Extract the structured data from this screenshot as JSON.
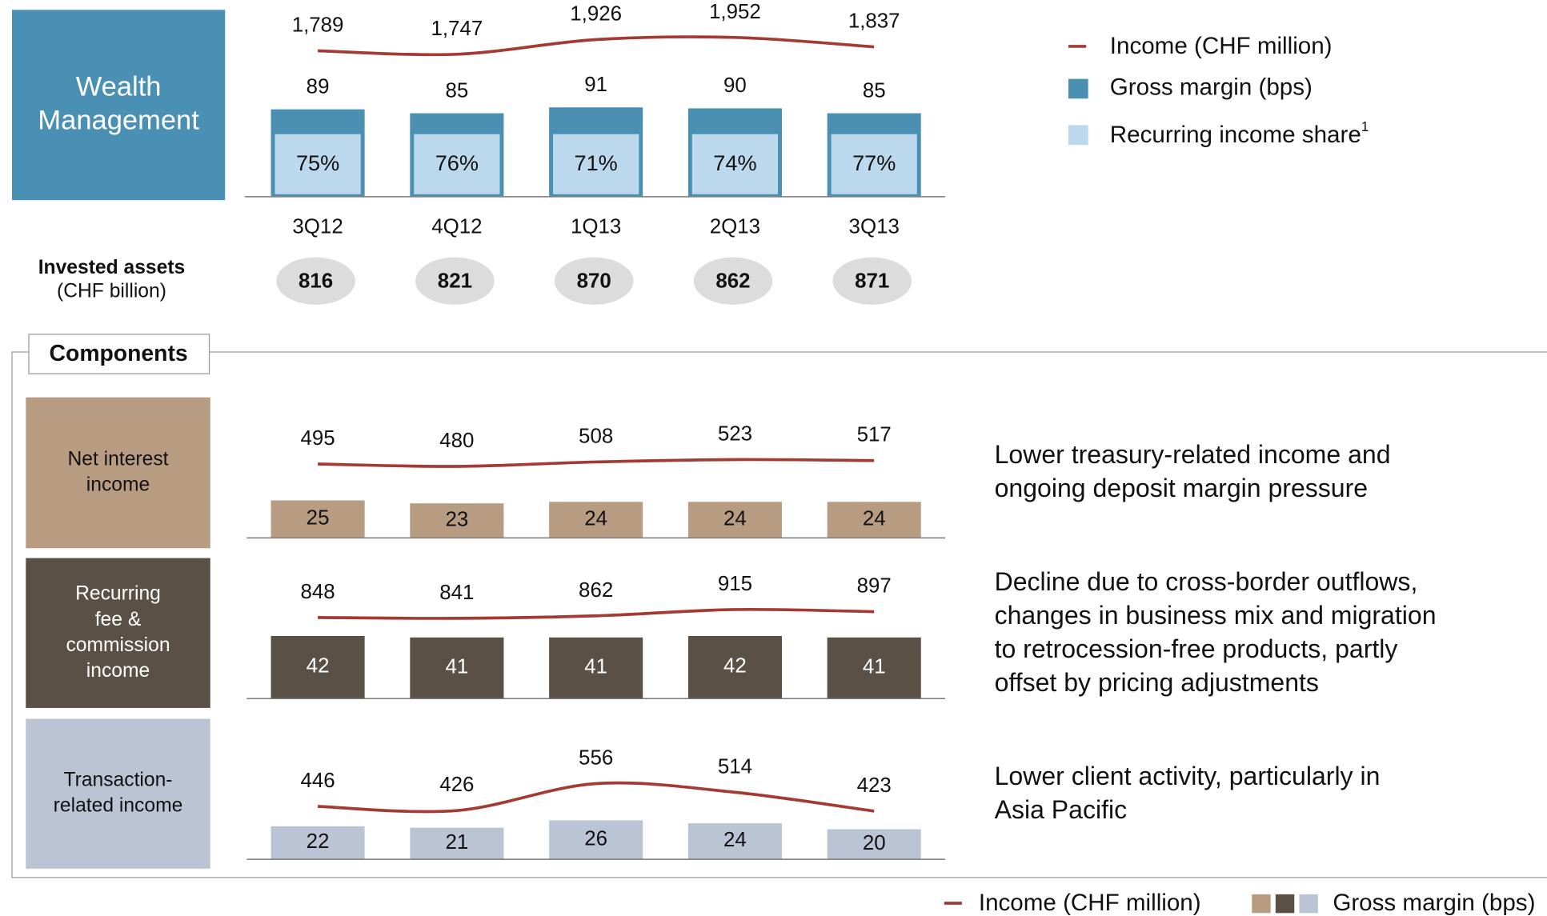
{
  "chart_data": [
    {
      "type": "bar",
      "title_lines": [
        "Wealth",
        "Management"
      ],
      "color": "#4a90b5",
      "categories": [
        "3Q12",
        "4Q12",
        "1Q13",
        "2Q13",
        "3Q13"
      ],
      "series": [
        {
          "name": "Income (CHF million)",
          "type": "line",
          "color": "#a33a33",
          "values": [
            1789,
            1747,
            1926,
            1952,
            1837
          ],
          "value_labels": [
            "1,789",
            "1,747",
            "1,926",
            "1,952",
            "1,837"
          ]
        },
        {
          "name": "Gross margin (bps)",
          "color": "#4b8fb3",
          "values": [
            89,
            85,
            91,
            90,
            85
          ]
        },
        {
          "name": "Recurring income share",
          "footnote": "1",
          "color": "#bcd8ec",
          "values": [
            75,
            76,
            71,
            74,
            77
          ],
          "value_labels": [
            "75%",
            "76%",
            "71%",
            "74%",
            "77%"
          ]
        }
      ]
    },
    {
      "type": "bar",
      "title_lines": [
        "Net interest",
        "income"
      ],
      "color": "#b89c82",
      "series": [
        {
          "name": "Income (CHF million)",
          "type": "line",
          "color": "#a33a33",
          "values": [
            495,
            480,
            508,
            523,
            517
          ]
        },
        {
          "name": "Gross margin (bps)",
          "color": "#b89c82",
          "values": [
            25,
            23,
            24,
            24,
            24
          ]
        }
      ],
      "comment_lines": [
        "Lower treasury-related income and",
        "ongoing deposit margin pressure"
      ]
    },
    {
      "type": "bar",
      "title_lines": [
        "Recurring",
        "fee &",
        "commission",
        "income"
      ],
      "color": "#5a5045",
      "series": [
        {
          "name": "Income (CHF million)",
          "type": "line",
          "color": "#a33a33",
          "values": [
            848,
            841,
            862,
            915,
            897
          ]
        },
        {
          "name": "Gross margin (bps)",
          "color": "#5a5045",
          "values": [
            42,
            41,
            41,
            42,
            41
          ]
        }
      ],
      "comment_lines": [
        "Decline due to cross-border outflows,",
        "changes in business mix and migration",
        "to retrocession-free products, partly",
        "offset by pricing adjustments"
      ]
    },
    {
      "type": "bar",
      "title_lines": [
        "Transaction-",
        "related income"
      ],
      "color": "#bac4d4",
      "series": [
        {
          "name": "Income (CHF million)",
          "type": "line",
          "color": "#a33a33",
          "values": [
            446,
            426,
            556,
            514,
            423
          ]
        },
        {
          "name": "Gross margin (bps)",
          "color": "#bac4d4",
          "values": [
            22,
            21,
            26,
            24,
            20
          ]
        }
      ],
      "comment_lines": [
        "Lower client activity, particularly in",
        "Asia Pacific"
      ]
    }
  ],
  "invested_assets": {
    "label": "Invested assets",
    "unit": "(CHF billion)",
    "values": [
      816,
      821,
      870,
      862,
      871
    ]
  },
  "components_label": "Components"
}
